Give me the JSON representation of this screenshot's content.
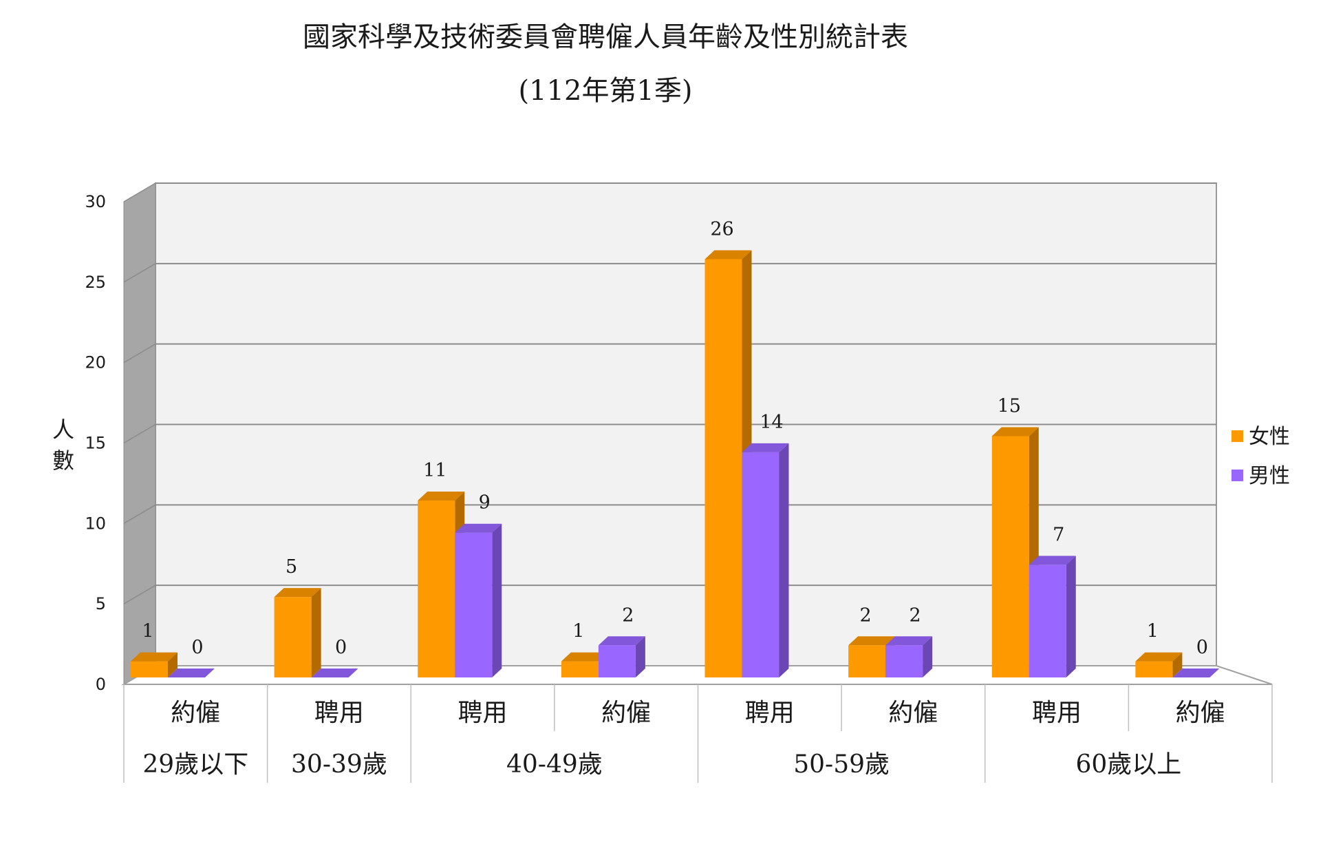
{
  "chart_data": {
    "type": "bar",
    "title": "國家科學及技術委員會聘僱人員年齡及性別統計表",
    "subtitle": "(112年第1季)",
    "ylabel": "人數",
    "ylim": [
      0,
      30
    ],
    "yticks": [
      0,
      5,
      10,
      15,
      20,
      25,
      30
    ],
    "grid": true,
    "legend_position": "right",
    "categories": [
      "約僱",
      "聘用",
      "聘用",
      "約僱",
      "聘用",
      "約僱",
      "聘用",
      "約僱"
    ],
    "groups": [
      {
        "label": "29歲以下",
        "span": 1
      },
      {
        "label": "30-39歲",
        "span": 1
      },
      {
        "label": "40-49歲",
        "span": 2
      },
      {
        "label": "50-59歲",
        "span": 2
      },
      {
        "label": "60歲以上",
        "span": 2
      }
    ],
    "series": [
      {
        "name": "女性",
        "color": "#FF9900",
        "values": [
          1,
          5,
          11,
          1,
          26,
          2,
          15,
          1
        ]
      },
      {
        "name": "男性",
        "color": "#9966FF",
        "values": [
          0,
          0,
          9,
          2,
          14,
          2,
          7,
          0
        ]
      }
    ]
  }
}
